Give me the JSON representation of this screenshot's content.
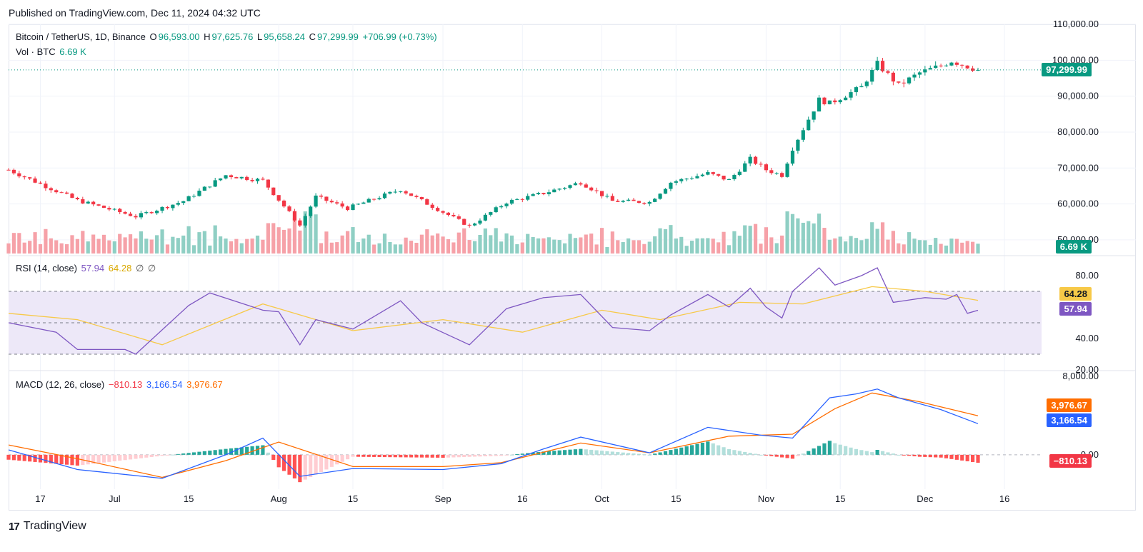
{
  "published": "Published on TradingView.com, Dec 11, 2024 04:32 UTC",
  "footer": {
    "logo_text": "TradingView"
  },
  "header": {
    "symbol": "Bitcoin / TetherUS, 1D, Binance",
    "o_label": "O",
    "o_value": "96,593.00",
    "h_label": "H",
    "h_value": "97,625.76",
    "l_label": "L",
    "l_value": "95,658.24",
    "c_label": "C",
    "c_value": "97,299.99",
    "change": "+706.99 (+0.73%)",
    "vol_label": "Vol · BTC",
    "vol_value": "6.69 K"
  },
  "rsi_header": {
    "label": "RSI (14, close)",
    "rsi": "57.94",
    "ma": "64.28",
    "extra1": "∅",
    "extra2": "∅"
  },
  "macd_header": {
    "label": "MACD (12, 26, close)",
    "hist": "−810.13",
    "macd": "3,166.54",
    "signal": "3,976.67"
  },
  "badges": {
    "price": "97,299.99",
    "volume": "6.69 K",
    "rsi_ma": "64.28",
    "rsi": "57.94",
    "macd_signal": "3,976.67",
    "macd": "3,166.54",
    "macd_hist": "−810.13"
  },
  "colors": {
    "up": "#089981",
    "down": "#f23645",
    "up_vol": "#8fcfc4",
    "down_vol": "#f6a1a8",
    "rsi": "#7e57c2",
    "rsi_ma": "#f7c948",
    "macd": "#2962ff",
    "signal": "#ff6d00",
    "rsi_band": "#ede8f8"
  },
  "chart_data": [
    {
      "type": "candlestick",
      "title": "Bitcoin / TetherUS, 1D, Binance",
      "price_axis_ticks": [
        "110,000.00",
        "100,000.00",
        "90,000.00",
        "80,000.00",
        "70,000.00",
        "60,000.00",
        "50,000.00"
      ],
      "ylim": [
        46000,
        110000
      ],
      "x_tick_labels": [
        "17",
        "Jul",
        "15",
        "Aug",
        "15",
        "Sep",
        "16",
        "Oct",
        "15",
        "Nov",
        "15",
        "Dec",
        "16"
      ],
      "x_tick_dates": [
        "2024-06-17",
        "2024-07-01",
        "2024-07-15",
        "2024-08-01",
        "2024-08-15",
        "2024-09-01",
        "2024-09-16",
        "2024-10-01",
        "2024-10-15",
        "2024-11-01",
        "2024-11-15",
        "2024-12-01",
        "2024-12-16"
      ],
      "date_range": [
        "2024-06-11",
        "2024-12-11"
      ],
      "close_path_keypoints": {
        "dates": [
          "2024-06-11",
          "2024-06-24",
          "2024-07-05",
          "2024-07-14",
          "2024-07-22",
          "2024-07-29",
          "2024-08-05",
          "2024-08-08",
          "2024-08-14",
          "2024-08-24",
          "2024-09-06",
          "2024-09-13",
          "2024-09-20",
          "2024-09-27",
          "2024-10-03",
          "2024-10-10",
          "2024-10-14",
          "2024-10-21",
          "2024-10-25",
          "2024-10-29",
          "2024-11-01",
          "2024-11-04",
          "2024-11-06",
          "2024-11-11",
          "2024-11-13",
          "2024-11-19",
          "2024-11-22",
          "2024-11-26",
          "2024-11-30",
          "2024-12-04",
          "2024-12-06",
          "2024-12-11"
        ],
        "close": [
          69500,
          61000,
          56500,
          60800,
          68000,
          66500,
          54000,
          62000,
          58800,
          64000,
          53800,
          60500,
          63000,
          66000,
          60800,
          60500,
          66000,
          68500,
          66600,
          72500,
          69500,
          68000,
          75500,
          89000,
          88000,
          92500,
          99000,
          93000,
          96500,
          98500,
          99800,
          97300
        ]
      },
      "last_price": 97299.99
    },
    {
      "type": "bar",
      "title": "Vol · BTC",
      "last_value": "6.69 K"
    },
    {
      "type": "line",
      "title": "RSI (14, close)",
      "ylim": [
        20,
        90
      ],
      "y_ticks": [
        "80.00",
        "40.00",
        "20.00"
      ],
      "bands": {
        "upper": 70,
        "middle": 50,
        "lower": 30
      },
      "series": [
        {
          "name": "RSI",
          "dates": [
            "2024-06-11",
            "2024-06-20",
            "2024-06-24",
            "2024-07-03",
            "2024-07-05",
            "2024-07-15",
            "2024-07-19",
            "2024-07-29",
            "2024-08-01",
            "2024-08-05",
            "2024-08-08",
            "2024-08-15",
            "2024-08-24",
            "2024-08-28",
            "2024-09-06",
            "2024-09-13",
            "2024-09-20",
            "2024-09-27",
            "2024-10-03",
            "2024-10-10",
            "2024-10-14",
            "2024-10-21",
            "2024-10-25",
            "2024-10-29",
            "2024-11-01",
            "2024-11-04",
            "2024-11-06",
            "2024-11-11",
            "2024-11-14",
            "2024-11-19",
            "2024-11-22",
            "2024-11-25",
            "2024-12-01",
            "2024-12-05",
            "2024-12-07",
            "2024-12-09",
            "2024-12-11"
          ],
          "values": [
            50,
            44,
            33,
            33,
            30,
            61,
            69,
            58,
            57,
            36,
            52,
            46,
            64,
            50,
            36,
            59,
            66,
            68,
            47,
            45,
            55,
            68,
            60,
            72,
            60,
            53,
            70,
            85,
            74,
            80,
            85,
            63,
            66,
            65,
            68,
            56,
            57.94
          ]
        },
        {
          "name": "RSI-based MA",
          "dates": [
            "2024-06-11",
            "2024-06-24",
            "2024-07-10",
            "2024-07-29",
            "2024-08-15",
            "2024-09-01",
            "2024-09-16",
            "2024-10-01",
            "2024-10-12",
            "2024-10-27",
            "2024-11-08",
            "2024-11-21",
            "2024-12-01",
            "2024-12-11"
          ],
          "values": [
            56,
            52,
            36,
            62,
            45,
            52,
            44,
            58,
            52,
            63,
            62,
            73,
            70,
            64.28
          ]
        }
      ]
    },
    {
      "type": "line",
      "title": "MACD (12, 26, close)",
      "ylim": [
        -3500,
        8500
      ],
      "y_ticks": [
        "8,000.00",
        "0.00"
      ],
      "series": [
        {
          "name": "MACD",
          "dates": [
            "2024-06-11",
            "2024-06-24",
            "2024-07-10",
            "2024-07-22",
            "2024-07-29",
            "2024-08-05",
            "2024-08-15",
            "2024-09-01",
            "2024-09-12",
            "2024-09-20",
            "2024-09-27",
            "2024-10-10",
            "2024-10-21",
            "2024-10-31",
            "2024-11-06",
            "2024-11-13",
            "2024-11-18",
            "2024-11-22",
            "2024-11-26",
            "2024-12-04",
            "2024-12-11"
          ],
          "values": [
            500,
            -1500,
            -2400,
            0,
            1700,
            -2200,
            -1400,
            -1500,
            -900,
            600,
            1800,
            200,
            2800,
            2000,
            1700,
            5800,
            6200,
            6700,
            5800,
            4600,
            3166.54
          ]
        },
        {
          "name": "Signal",
          "dates": [
            "2024-06-11",
            "2024-06-24",
            "2024-07-10",
            "2024-07-22",
            "2024-08-01",
            "2024-08-15",
            "2024-09-01",
            "2024-09-12",
            "2024-09-27",
            "2024-10-10",
            "2024-10-25",
            "2024-11-06",
            "2024-11-14",
            "2024-11-21",
            "2024-11-30",
            "2024-12-11"
          ],
          "values": [
            1000,
            -400,
            -2300,
            -600,
            1300,
            -1200,
            -1200,
            -800,
            1200,
            200,
            1900,
            2100,
            4700,
            6300,
            5400,
            3976.67
          ]
        },
        {
          "name": "Histogram",
          "last_value": -810.13
        }
      ]
    }
  ]
}
